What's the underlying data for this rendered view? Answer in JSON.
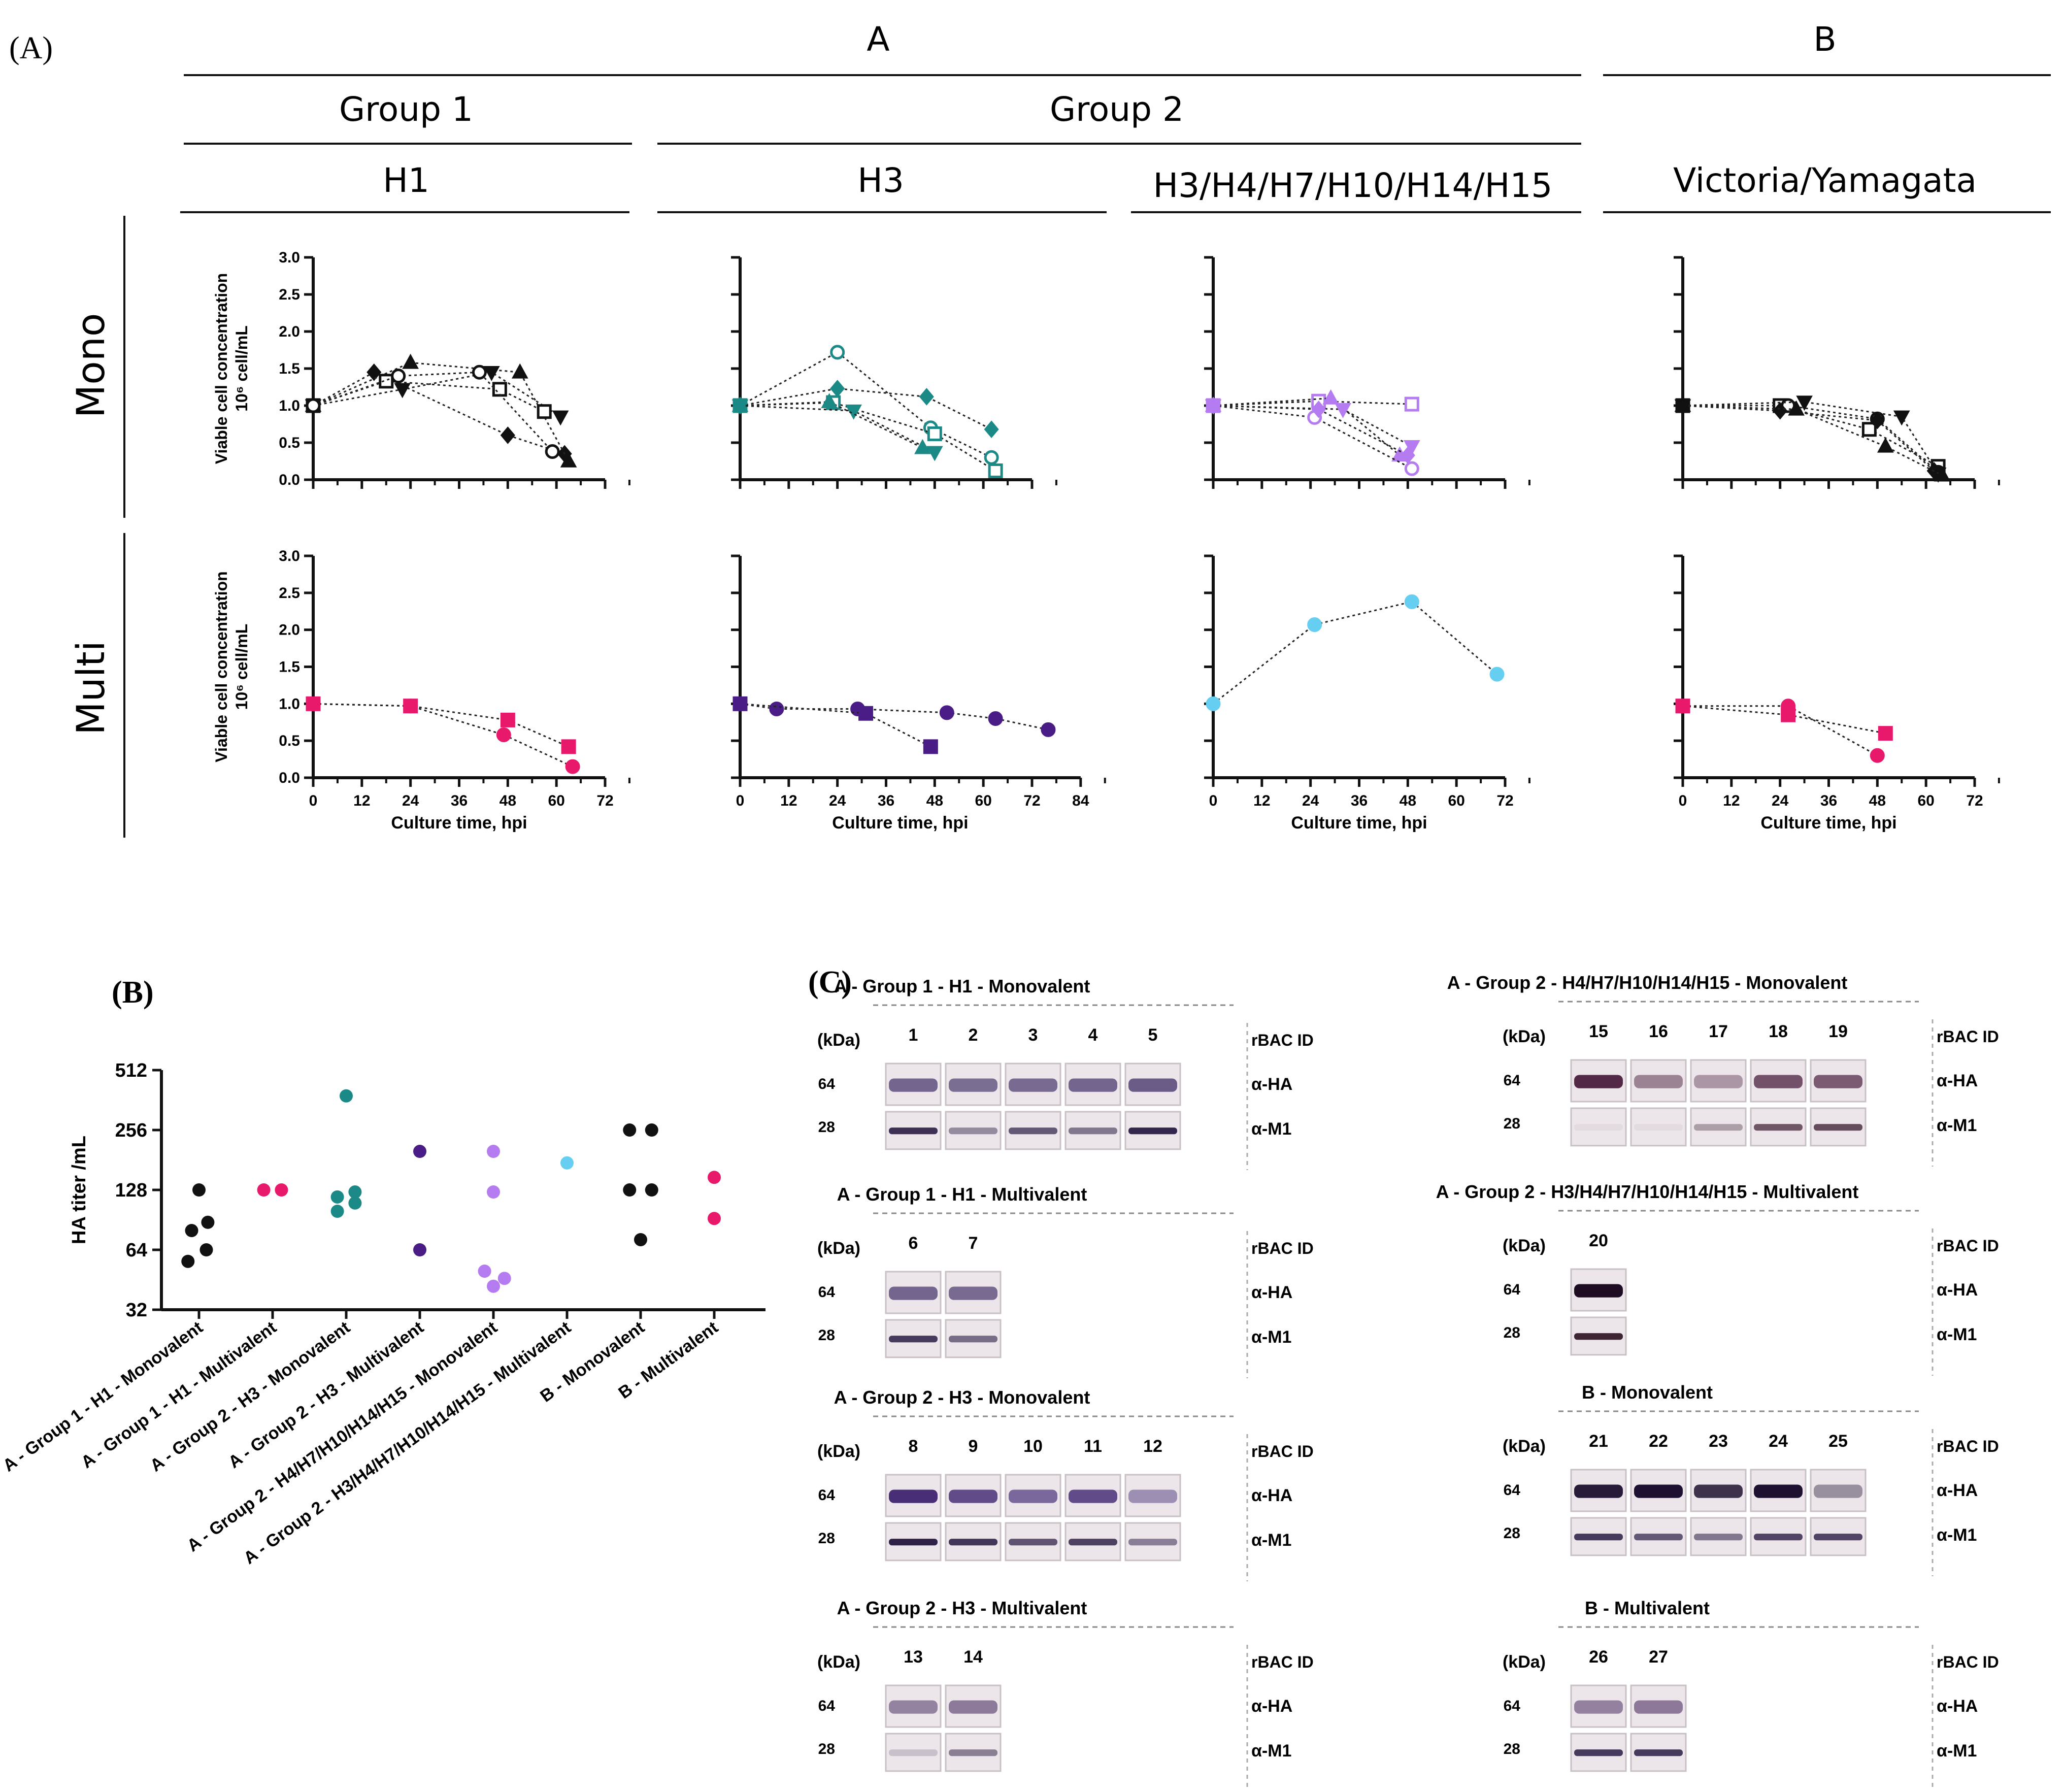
{
  "panel_labels": {
    "a": "(A)",
    "b": "(B)",
    "c": "(C)"
  },
  "header": {
    "type_a": "A",
    "type_b": "B",
    "group1": "Group 1",
    "group2": "Group 2",
    "subtypes": [
      "H1",
      "H3",
      "H3/H4/H7/H10/H14/H15",
      "Victoria/Yamagata"
    ]
  },
  "row_labels": [
    "Mono",
    "Multi"
  ],
  "axis": {
    "ylabel_line1": "Viable cell concentration",
    "ylabel_line2": "10⁶ cell/mL",
    "xlabel": "Culture time, hpi"
  },
  "colors": {
    "black": "#111111",
    "pink": "#e8196b",
    "teal": "#1b8a87",
    "purple": "#4a1d86",
    "lilac": "#b57bf0",
    "cyan": "#66cef0"
  },
  "chart_data": [
    {
      "id": "mono-h1",
      "type": "scatter",
      "row": "Mono",
      "col": "H1",
      "xlim": [
        0,
        72
      ],
      "xticks": [
        0,
        12,
        24,
        36,
        48,
        60,
        72
      ],
      "ylim": [
        0,
        3
      ],
      "yticks": [
        "0.0",
        "0.5",
        "1.0",
        "1.5",
        "2.0",
        "2.5",
        "3.0"
      ],
      "show_xticks": false,
      "show_ylabel": true,
      "series": [
        {
          "color": "#111111",
          "marker": "diamond",
          "fill": true,
          "x": [
            0,
            15,
            48,
            62
          ],
          "y": [
            1.0,
            1.45,
            0.6,
            0.35
          ]
        },
        {
          "color": "#111111",
          "marker": "triangle",
          "fill": true,
          "x": [
            0,
            24,
            51,
            63
          ],
          "y": [
            1.0,
            1.58,
            1.45,
            0.25
          ]
        },
        {
          "color": "#111111",
          "marker": "triangle-down",
          "fill": true,
          "x": [
            0,
            22,
            44,
            61
          ],
          "y": [
            1.0,
            1.22,
            1.45,
            0.85
          ]
        },
        {
          "color": "#111111",
          "marker": "square",
          "fill": false,
          "x": [
            0,
            18,
            46,
            57
          ],
          "y": [
            1.0,
            1.33,
            1.22,
            0.92
          ]
        },
        {
          "color": "#111111",
          "marker": "circle",
          "fill": false,
          "x": [
            0,
            21,
            41,
            59
          ],
          "y": [
            1.0,
            1.4,
            1.45,
            0.38
          ]
        }
      ]
    },
    {
      "id": "mono-h3",
      "type": "scatter",
      "row": "Mono",
      "col": "H3",
      "xlim": [
        0,
        72
      ],
      "ylim": [
        0,
        3
      ],
      "show_xticks": false,
      "show_ylabel": false,
      "series": [
        {
          "color": "#1b8a87",
          "marker": "circle",
          "fill": false,
          "x": [
            0,
            24,
            47,
            62
          ],
          "y": [
            1.0,
            1.72,
            0.7,
            0.3
          ]
        },
        {
          "color": "#1b8a87",
          "marker": "diamond",
          "fill": true,
          "x": [
            0,
            24,
            46,
            62
          ],
          "y": [
            1.0,
            1.23,
            1.12,
            0.68
          ]
        },
        {
          "color": "#1b8a87",
          "marker": "square",
          "fill": false,
          "x": [
            0,
            23,
            48,
            63
          ],
          "y": [
            1.0,
            1.04,
            0.62,
            0.12
          ]
        },
        {
          "color": "#1b8a87",
          "marker": "triangle-down",
          "fill": true,
          "x": [
            0,
            28,
            48
          ],
          "y": [
            1.0,
            0.93,
            0.37
          ]
        },
        {
          "color": "#1b8a87",
          "marker": "triangle",
          "fill": true,
          "x": [
            0,
            22,
            45
          ],
          "y": [
            1.0,
            1.05,
            0.43
          ]
        }
      ]
    },
    {
      "id": "mono-h4",
      "type": "scatter",
      "row": "Mono",
      "col": "H3/H4/H7/H10/H14/H15",
      "xlim": [
        0,
        72
      ],
      "ylim": [
        0,
        3
      ],
      "show_xticks": false,
      "show_ylabel": false,
      "series": [
        {
          "color": "#b57bf0",
          "marker": "square",
          "fill": false,
          "x": [
            0,
            26,
            49
          ],
          "y": [
            1.0,
            1.06,
            1.02
          ]
        },
        {
          "color": "#b57bf0",
          "marker": "triangle",
          "fill": true,
          "x": [
            0,
            29,
            46
          ],
          "y": [
            1.0,
            1.1,
            0.33
          ]
        },
        {
          "color": "#b57bf0",
          "marker": "triangle-down",
          "fill": true,
          "x": [
            0,
            32,
            49
          ],
          "y": [
            1.0,
            0.95,
            0.45
          ]
        },
        {
          "color": "#b57bf0",
          "marker": "circle",
          "fill": false,
          "x": [
            0,
            25,
            49
          ],
          "y": [
            1.0,
            0.84,
            0.15
          ]
        },
        {
          "color": "#b57bf0",
          "marker": "diamond",
          "fill": true,
          "x": [
            0,
            26,
            48
          ],
          "y": [
            1.0,
            0.95,
            0.33
          ]
        }
      ]
    },
    {
      "id": "mono-b",
      "type": "scatter",
      "row": "Mono",
      "col": "Victoria/Yamagata",
      "xlim": [
        0,
        72
      ],
      "ylim": [
        0,
        3
      ],
      "show_xticks": false,
      "show_ylabel": false,
      "series": [
        {
          "color": "#111111",
          "marker": "square",
          "fill": false,
          "x": [
            0,
            24,
            46,
            63
          ],
          "y": [
            1.0,
            1.0,
            0.68,
            0.18
          ]
        },
        {
          "color": "#111111",
          "marker": "circle",
          "fill": false,
          "x": [
            0,
            26,
            48,
            63
          ],
          "y": [
            1.0,
            1.0,
            0.82,
            0.1
          ]
        },
        {
          "color": "#111111",
          "marker": "triangle-down",
          "fill": true,
          "x": [
            0,
            30,
            54,
            63
          ],
          "y": [
            1.0,
            1.05,
            0.85,
            0.08
          ]
        },
        {
          "color": "#111111",
          "marker": "diamond",
          "fill": true,
          "x": [
            0,
            24,
            48,
            62
          ],
          "y": [
            1.0,
            0.93,
            0.8,
            0.12
          ]
        },
        {
          "color": "#111111",
          "marker": "triangle",
          "fill": true,
          "x": [
            0,
            28,
            50,
            64
          ],
          "y": [
            1.0,
            0.95,
            0.45,
            0.06
          ]
        }
      ]
    },
    {
      "id": "multi-h1",
      "type": "scatter",
      "row": "Multi",
      "col": "H1",
      "xlim": [
        0,
        72
      ],
      "xticks": [
        "0",
        "12",
        "24",
        "36",
        "48",
        "60",
        "72"
      ],
      "ylim": [
        0,
        3
      ],
      "yticks": [
        "0.0",
        "0.5",
        "1.0",
        "1.5",
        "2.0",
        "2.5",
        "3.0"
      ],
      "show_xticks": true,
      "show_ylabel": true,
      "series": [
        {
          "color": "#e8196b",
          "marker": "square",
          "fill": true,
          "x": [
            0,
            24,
            48,
            63
          ],
          "y": [
            1.0,
            0.97,
            0.78,
            0.42
          ]
        },
        {
          "color": "#e8196b",
          "marker": "circle",
          "fill": true,
          "x": [
            0,
            24,
            47,
            64
          ],
          "y": [
            1.0,
            0.97,
            0.58,
            0.15
          ]
        }
      ]
    },
    {
      "id": "multi-h3",
      "type": "scatter",
      "row": "Multi",
      "col": "H3",
      "xlim": [
        0,
        84
      ],
      "xticks": [
        "0",
        "12",
        "24",
        "36",
        "48",
        "60",
        "72",
        "84"
      ],
      "ylim": [
        0,
        3
      ],
      "show_xticks": true,
      "show_ylabel": false,
      "series": [
        {
          "color": "#4a1d86",
          "marker": "circle",
          "fill": true,
          "x": [
            0,
            9,
            29,
            51,
            63,
            76
          ],
          "y": [
            1.0,
            0.93,
            0.93,
            0.88,
            0.8,
            0.65
          ]
        },
        {
          "color": "#4a1d86",
          "marker": "square",
          "fill": true,
          "x": [
            0,
            31,
            47
          ],
          "y": [
            1.0,
            0.87,
            0.42
          ]
        }
      ]
    },
    {
      "id": "multi-h4",
      "type": "scatter",
      "row": "Multi",
      "col": "H3/H4/H7/H10/H14/H15",
      "xlim": [
        0,
        72
      ],
      "xticks": [
        "0",
        "12",
        "24",
        "36",
        "48",
        "60",
        "72"
      ],
      "ylim": [
        0,
        3
      ],
      "show_xticks": true,
      "show_ylabel": false,
      "series": [
        {
          "color": "#66cef0",
          "marker": "circle",
          "fill": true,
          "x": [
            0,
            25,
            49,
            70
          ],
          "y": [
            1.0,
            2.07,
            2.38,
            1.4
          ]
        }
      ]
    },
    {
      "id": "multi-b",
      "type": "scatter",
      "row": "Multi",
      "col": "Victoria/Yamagata",
      "xlim": [
        0,
        72
      ],
      "xticks": [
        "0",
        "12",
        "24",
        "36",
        "48",
        "60",
        "72"
      ],
      "ylim": [
        0,
        3
      ],
      "show_xticks": true,
      "show_ylabel": false,
      "series": [
        {
          "color": "#e8196b",
          "marker": "circle",
          "fill": true,
          "x": [
            0,
            26,
            48
          ],
          "y": [
            0.97,
            0.97,
            0.3
          ]
        },
        {
          "color": "#e8196b",
          "marker": "square",
          "fill": true,
          "x": [
            0,
            26,
            50
          ],
          "y": [
            0.97,
            0.85,
            0.6
          ]
        }
      ]
    },
    {
      "id": "ha-titer",
      "type": "scatter",
      "title": "",
      "ylabel": "HA titer /mL",
      "yscale": "log2",
      "ylim": [
        32,
        512
      ],
      "yticks": [
        "32",
        "64",
        "128",
        "256",
        "512"
      ],
      "categories": [
        "A - Group 1 - H1 - Monovalent",
        "A - Group 1 - H1 - Multivalent",
        "A - Group 2 - H3 - Monovalent",
        "A - Group 2 - H3 - Multivalent",
        "A - Group 2 - H4/H7/H10/H14/H15 - Monovalent",
        "A - Group 2 - H3/H4/H7/H10/H14/H15 - Multivalent",
        "B - Monovalent",
        "B - Multivalent"
      ],
      "points": [
        {
          "cat": 0,
          "dx": -0.15,
          "y": 56,
          "color": "#111111"
        },
        {
          "cat": 0,
          "dx": 0.1,
          "y": 64,
          "color": "#111111"
        },
        {
          "cat": 0,
          "dx": -0.1,
          "y": 80,
          "color": "#111111"
        },
        {
          "cat": 0,
          "dx": 0.12,
          "y": 88,
          "color": "#111111"
        },
        {
          "cat": 0,
          "dx": 0.0,
          "y": 128,
          "color": "#111111"
        },
        {
          "cat": 1,
          "dx": -0.12,
          "y": 128,
          "color": "#e8196b"
        },
        {
          "cat": 1,
          "dx": 0.12,
          "y": 128,
          "color": "#e8196b"
        },
        {
          "cat": 2,
          "dx": -0.12,
          "y": 100,
          "color": "#1b8a87"
        },
        {
          "cat": 2,
          "dx": 0.12,
          "y": 110,
          "color": "#1b8a87"
        },
        {
          "cat": 2,
          "dx": -0.12,
          "y": 118,
          "color": "#1b8a87"
        },
        {
          "cat": 2,
          "dx": 0.12,
          "y": 125,
          "color": "#1b8a87"
        },
        {
          "cat": 2,
          "dx": 0.0,
          "y": 380,
          "color": "#1b8a87"
        },
        {
          "cat": 3,
          "dx": 0.0,
          "y": 64,
          "color": "#4a1d86"
        },
        {
          "cat": 3,
          "dx": 0.0,
          "y": 200,
          "color": "#4a1d86"
        },
        {
          "cat": 4,
          "dx": 0.0,
          "y": 42,
          "color": "#b57bf0"
        },
        {
          "cat": 4,
          "dx": 0.15,
          "y": 46,
          "color": "#b57bf0"
        },
        {
          "cat": 4,
          "dx": -0.12,
          "y": 50,
          "color": "#b57bf0"
        },
        {
          "cat": 4,
          "dx": 0.0,
          "y": 125,
          "color": "#b57bf0"
        },
        {
          "cat": 4,
          "dx": 0.0,
          "y": 200,
          "color": "#b57bf0"
        },
        {
          "cat": 5,
          "dx": 0.0,
          "y": 175,
          "color": "#66cef0"
        },
        {
          "cat": 6,
          "dx": 0.0,
          "y": 72,
          "color": "#111111"
        },
        {
          "cat": 6,
          "dx": -0.15,
          "y": 128,
          "color": "#111111"
        },
        {
          "cat": 6,
          "dx": 0.15,
          "y": 128,
          "color": "#111111"
        },
        {
          "cat": 6,
          "dx": -0.15,
          "y": 256,
          "color": "#111111"
        },
        {
          "cat": 6,
          "dx": 0.15,
          "y": 256,
          "color": "#111111"
        },
        {
          "cat": 7,
          "dx": 0.0,
          "y": 92,
          "color": "#e8196b"
        },
        {
          "cat": 7,
          "dx": 0.0,
          "y": 148,
          "color": "#e8196b"
        }
      ]
    },
    {
      "id": "blots",
      "type": "table",
      "common": {
        "kda": "(kDa)",
        "mw_ha": "64",
        "mw_m1": "28",
        "id_label": "rBAC ID",
        "ha_label": "α-HA",
        "m1_label": "α-M1"
      },
      "groups": [
        {
          "title": "A - Group 1 - H1 - Monovalent",
          "ids": [
            "1",
            "2",
            "3",
            "4",
            "5"
          ],
          "ha": [
            0.75,
            0.7,
            0.72,
            0.75,
            0.8
          ],
          "m1": [
            0.9,
            0.45,
            0.7,
            0.55,
            0.95
          ],
          "ha_color": "#4b3a6e",
          "m1_color": "#2a1c44"
        },
        {
          "title": "A - Group 1 - H1 - Multivalent",
          "ids": [
            "6",
            "7"
          ],
          "ha": [
            0.75,
            0.72
          ],
          "m1": [
            0.85,
            0.6
          ],
          "ha_color": "#4b3a6e",
          "m1_color": "#2a1c44"
        },
        {
          "title": "A - Group 2 -  H3 - Monovalent",
          "ids": [
            "8",
            "9",
            "10",
            "11",
            "12"
          ],
          "ha": [
            0.95,
            0.8,
            0.65,
            0.8,
            0.45
          ],
          "m1": [
            0.95,
            0.85,
            0.7,
            0.8,
            0.5
          ],
          "ha_color": "#3e2470",
          "m1_color": "#25163f"
        },
        {
          "title": "A - Group 2 - H3 - Multivalent",
          "ids": [
            "13",
            "14"
          ],
          "ha": [
            0.6,
            0.65
          ],
          "m1": [
            0.2,
            0.55
          ],
          "ha_color": "#5a4070",
          "m1_color": "#3a2a4a"
        },
        {
          "title": "A - Group 2 - H4/H7/H10/H14/H15 - Monovalent",
          "ids": [
            "15",
            "16",
            "17",
            "18",
            "19"
          ],
          "ha": [
            0.95,
            0.5,
            0.4,
            0.75,
            0.7
          ],
          "m1": [
            0.05,
            0.05,
            0.35,
            0.7,
            0.75
          ],
          "ha_color": "#4a1f3e",
          "m1_color": "#3a1a2e"
        },
        {
          "title": "A - Group 2 - H3/H4/H7/H10/H14/H15 - Multivalent",
          "ids": [
            "20"
          ],
          "ha": [
            1.0
          ],
          "m1": [
            0.9
          ],
          "ha_color": "#1e0d22",
          "m1_color": "#2a1020"
        },
        {
          "title": "B - Monovalent",
          "ids": [
            "21",
            "22",
            "23",
            "24",
            "25"
          ],
          "ha": [
            0.95,
            1.0,
            0.85,
            1.0,
            0.4
          ],
          "m1": [
            0.85,
            0.7,
            0.55,
            0.8,
            0.8
          ],
          "ha_color": "#1e1030",
          "m1_color": "#2a1c44"
        },
        {
          "title": "B - Multivalent",
          "ids": [
            "26",
            "27"
          ],
          "ha": [
            0.6,
            0.65
          ],
          "m1": [
            0.85,
            0.85
          ],
          "ha_color": "#5a3e6e",
          "m1_color": "#2a1c44"
        }
      ]
    }
  ]
}
